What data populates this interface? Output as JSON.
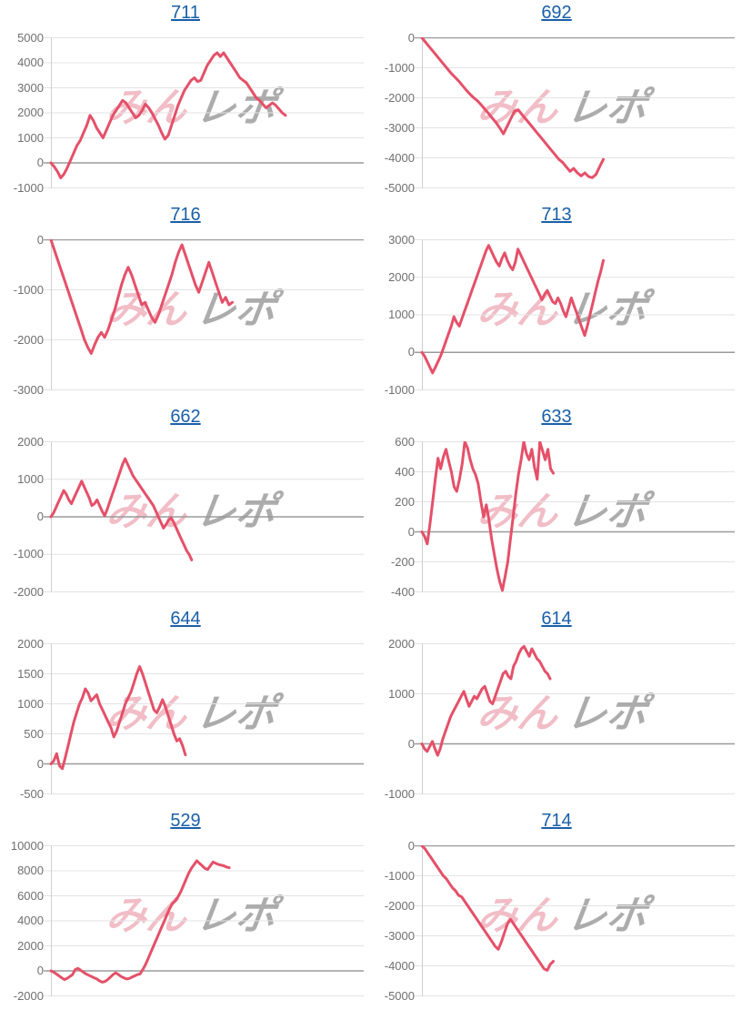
{
  "watermark": {
    "part1": "みん",
    "part2": "レポ"
  },
  "styles": {
    "line_color": "#e55069",
    "grid_color": "#e3e3e3",
    "zero_line_color": "#9a9a9a",
    "axis_color": "#cfcfcf",
    "label_color": "#6f6f6f",
    "link_color": "#1a5fa8"
  },
  "chart_data": [
    {
      "type": "line",
      "title": "711",
      "xlabel": "",
      "ylabel": "",
      "ylim": [
        -1000,
        5000
      ],
      "tick_step": 1000,
      "grid": true,
      "x_extent": 0.75,
      "values": [
        0,
        -150,
        -350,
        -600,
        -450,
        -200,
        100,
        400,
        700,
        900,
        1200,
        1500,
        1900,
        1700,
        1400,
        1200,
        1000,
        1300,
        1600,
        1900,
        2100,
        2300,
        2500,
        2400,
        2200,
        2000,
        1800,
        1900,
        2100,
        2350,
        2200,
        2000,
        1750,
        1500,
        1200,
        950,
        1100,
        1500,
        1900,
        2300,
        2600,
        2900,
        3100,
        3300,
        3400,
        3250,
        3300,
        3600,
        3900,
        4100,
        4300,
        4400,
        4250,
        4400,
        4200,
        4000,
        3800,
        3600,
        3400,
        3300,
        3200,
        3000,
        2800,
        2600,
        2500,
        2350,
        2200,
        2300,
        2400,
        2300,
        2150,
        2000,
        1900
      ]
    },
    {
      "type": "line",
      "title": "692",
      "xlabel": "",
      "ylabel": "",
      "ylim": [
        -5000,
        0
      ],
      "tick_step": 1000,
      "grid": true,
      "x_extent": 0.58,
      "values": [
        0,
        -150,
        -300,
        -450,
        -600,
        -750,
        -900,
        -1050,
        -1200,
        -1320,
        -1450,
        -1600,
        -1750,
        -1880,
        -2000,
        -2100,
        -2230,
        -2380,
        -2520,
        -2680,
        -2820,
        -3000,
        -3200,
        -2950,
        -2700,
        -2450,
        -2400,
        -2550,
        -2700,
        -2850,
        -3000,
        -3150,
        -3300,
        -3450,
        -3600,
        -3750,
        -3900,
        -4050,
        -4150,
        -4300,
        -4450,
        -4350,
        -4500,
        -4600,
        -4500,
        -4620,
        -4660,
        -4550,
        -4300,
        -4050
      ]
    },
    {
      "type": "line",
      "title": "716",
      "xlabel": "",
      "ylabel": "",
      "ylim": [
        -3000,
        0
      ],
      "tick_step": 1000,
      "grid": true,
      "x_extent": 0.58,
      "values": [
        0,
        -200,
        -400,
        -600,
        -800,
        -1000,
        -1200,
        -1400,
        -1600,
        -1800,
        -2000,
        -2150,
        -2270,
        -2100,
        -1950,
        -1850,
        -1950,
        -1800,
        -1600,
        -1400,
        -1150,
        -900,
        -700,
        -550,
        -700,
        -900,
        -1100,
        -1300,
        -1250,
        -1400,
        -1550,
        -1650,
        -1500,
        -1300,
        -1100,
        -900,
        -700,
        -450,
        -250,
        -100,
        -300,
        -500,
        -700,
        -900,
        -1050,
        -850,
        -650,
        -450,
        -650,
        -850,
        -1050,
        -1250,
        -1150,
        -1300,
        -1250
      ]
    },
    {
      "type": "line",
      "title": "713",
      "xlabel": "",
      "ylabel": "",
      "ylim": [
        -1000,
        3000
      ],
      "tick_step": 1000,
      "grid": true,
      "x_extent": 0.58,
      "values": [
        0,
        -100,
        -250,
        -400,
        -550,
        -400,
        -250,
        -100,
        100,
        300,
        500,
        700,
        950,
        800,
        700,
        900,
        1100,
        1300,
        1500,
        1700,
        1900,
        2100,
        2300,
        2500,
        2700,
        2850,
        2700,
        2550,
        2400,
        2300,
        2500,
        2650,
        2450,
        2300,
        2200,
        2400,
        2750,
        2600,
        2450,
        2300,
        2150,
        2000,
        1850,
        1700,
        1550,
        1400,
        1550,
        1650,
        1500,
        1350,
        1300,
        1450,
        1300,
        1100,
        950,
        1200,
        1450,
        1250,
        1050,
        850,
        650,
        450,
        700,
        1000,
        1300,
        1600,
        1900,
        2150,
        2450
      ]
    },
    {
      "type": "line",
      "title": "662",
      "xlabel": "",
      "ylabel": "",
      "ylim": [
        -2000,
        2000
      ],
      "tick_step": 1000,
      "grid": true,
      "x_extent": 0.45,
      "values": [
        0,
        100,
        250,
        400,
        550,
        700,
        600,
        450,
        350,
        500,
        650,
        800,
        950,
        800,
        650,
        500,
        300,
        350,
        450,
        300,
        150,
        30,
        200,
        400,
        600,
        800,
        1000,
        1200,
        1400,
        1550,
        1400,
        1250,
        1100,
        1000,
        900,
        800,
        700,
        600,
        500,
        400,
        300,
        150,
        0,
        -150,
        -300,
        -200,
        -80,
        -30,
        -150,
        -300,
        -450,
        -600,
        -750,
        -900,
        -1000,
        -1150
      ]
    },
    {
      "type": "line",
      "title": "633",
      "xlabel": "",
      "ylabel": "",
      "ylim": [
        -400,
        600
      ],
      "tick_step": 200,
      "grid": true,
      "x_extent": 0.42,
      "values": [
        0,
        -30,
        -80,
        50,
        200,
        350,
        490,
        420,
        500,
        550,
        470,
        400,
        300,
        270,
        350,
        450,
        600,
        560,
        480,
        420,
        380,
        320,
        200,
        100,
        180,
        80,
        -50,
        -150,
        -250,
        -330,
        -390,
        -300,
        -200,
        -50,
        100,
        250,
        380,
        480,
        600,
        520,
        480,
        550,
        430,
        350,
        600,
        540,
        480,
        550,
        420,
        390
      ]
    },
    {
      "type": "line",
      "title": "644",
      "xlabel": "",
      "ylabel": "",
      "ylim": [
        -500,
        2000
      ],
      "tick_step": 500,
      "grid": true,
      "x_extent": 0.43,
      "values": [
        0,
        50,
        170,
        -30,
        -80,
        100,
        300,
        500,
        700,
        850,
        1000,
        1100,
        1250,
        1180,
        1050,
        1100,
        1150,
        1000,
        900,
        800,
        700,
        600,
        450,
        550,
        700,
        850,
        1000,
        1100,
        1200,
        1350,
        1500,
        1620,
        1500,
        1350,
        1200,
        1050,
        900,
        850,
        950,
        1070,
        950,
        800,
        650,
        500,
        380,
        420,
        300,
        150
      ]
    },
    {
      "type": "line",
      "title": "614",
      "xlabel": "",
      "ylabel": "",
      "ylim": [
        -1000,
        2000
      ],
      "tick_step": 1000,
      "grid": true,
      "x_extent": 0.41,
      "values": [
        0,
        -100,
        -150,
        -50,
        50,
        -100,
        -230,
        -100,
        100,
        250,
        400,
        550,
        650,
        750,
        850,
        950,
        1050,
        900,
        750,
        850,
        950,
        900,
        1000,
        1100,
        1150,
        1000,
        850,
        800,
        950,
        1100,
        1250,
        1400,
        1450,
        1350,
        1300,
        1550,
        1650,
        1800,
        1900,
        1950,
        1850,
        1750,
        1900,
        1800,
        1700,
        1650,
        1550,
        1450,
        1400,
        1300
      ]
    },
    {
      "type": "line",
      "title": "529",
      "xlabel": "",
      "ylabel": "",
      "ylim": [
        -2000,
        10000
      ],
      "tick_step": 2000,
      "grid": true,
      "x_extent": 0.57,
      "values": [
        0,
        -100,
        -250,
        -400,
        -550,
        -700,
        -600,
        -450,
        -300,
        100,
        200,
        50,
        -100,
        -250,
        -350,
        -450,
        -550,
        -650,
        -800,
        -900,
        -850,
        -700,
        -500,
        -300,
        -150,
        -300,
        -450,
        -550,
        -650,
        -600,
        -500,
        -400,
        -300,
        -250,
        100,
        500,
        1000,
        1500,
        2000,
        2500,
        3000,
        3500,
        4000,
        4500,
        5000,
        5400,
        5600,
        5900,
        6300,
        6800,
        7300,
        7800,
        8200,
        8500,
        8800,
        8600,
        8400,
        8200,
        8100,
        8400,
        8700,
        8600,
        8500,
        8450,
        8400,
        8300,
        8250
      ]
    },
    {
      "type": "line",
      "title": "714",
      "xlabel": "",
      "ylabel": "",
      "ylim": [
        -5000,
        0
      ],
      "tick_step": 1000,
      "grid": true,
      "x_extent": 0.42,
      "values": [
        0,
        -100,
        -250,
        -400,
        -550,
        -700,
        -850,
        -1000,
        -1100,
        -1250,
        -1400,
        -1500,
        -1650,
        -1700,
        -1850,
        -2000,
        -2150,
        -2300,
        -2450,
        -2600,
        -2750,
        -2900,
        -3050,
        -3200,
        -3350,
        -3450,
        -3200,
        -2900,
        -2600,
        -2450,
        -2600,
        -2750,
        -2900,
        -3050,
        -3200,
        -3350,
        -3500,
        -3650,
        -3800,
        -3950,
        -4100,
        -4150,
        -3950,
        -3850
      ]
    }
  ]
}
